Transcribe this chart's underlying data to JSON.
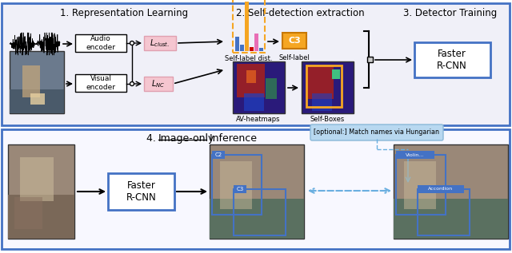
{
  "fig_width": 6.4,
  "fig_height": 3.17,
  "bg_color": "#ffffff",
  "top_panel_fc": "#f0f0f8",
  "top_panel_ec": "#4472c4",
  "bottom_panel_fc": "#f8f8ff",
  "bottom_panel_ec": "#4472c4",
  "section1_title": "1. Representation Learning",
  "section2_title": "2. Self-detection extraction",
  "section3_title": "3. Detector Training",
  "section4_title": "4. ",
  "section4_underline": "Image-only",
  "section4_rest": " Inference",
  "optional_label": "[optional:] Match names via Hungarian",
  "faster_rcnn": "Faster\nR-CNN",
  "audio_encoder": "Audio\nencoder",
  "visual_encoder": "Visual\nencoder",
  "self_label_dist": "Self-label dist.",
  "self_label": "Self-label",
  "av_heatmaps": "AV-heatmaps",
  "self_boxes": "Self-Boxes",
  "l_clust_color": "#f5c6d0",
  "l_nc_color": "#f5c6d0",
  "orange_color": "#f5a623",
  "blue_color": "#4472c4",
  "light_blue": "#b8d8f0",
  "light_blue_line": "#6aafe0"
}
